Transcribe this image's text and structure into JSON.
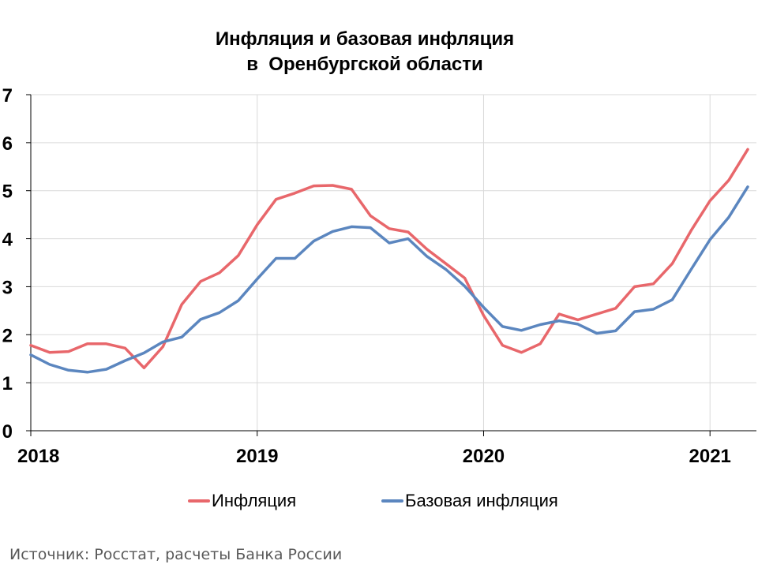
{
  "chart_data": {
    "type": "line",
    "title": "Инфляция и базовая инфляция",
    "subtitle": "в  Оренбургской области",
    "xlabel": "",
    "ylabel": "",
    "ylim": [
      0,
      7
    ],
    "yticks": [
      0,
      1,
      2,
      3,
      4,
      5,
      6,
      7
    ],
    "x_tick_labels": [
      {
        "label": "2018",
        "month_index": 0
      },
      {
        "label": "2019",
        "month_index": 12
      },
      {
        "label": "2020",
        "month_index": 24
      },
      {
        "label": "2021",
        "month_index": 36
      }
    ],
    "x": [
      "2018-01",
      "2018-02",
      "2018-03",
      "2018-04",
      "2018-05",
      "2018-06",
      "2018-07",
      "2018-08",
      "2018-09",
      "2018-10",
      "2018-11",
      "2018-12",
      "2019-01",
      "2019-02",
      "2019-03",
      "2019-04",
      "2019-05",
      "2019-06",
      "2019-07",
      "2019-08",
      "2019-09",
      "2019-10",
      "2019-11",
      "2019-12",
      "2020-01",
      "2020-02",
      "2020-03",
      "2020-04",
      "2020-05",
      "2020-06",
      "2020-07",
      "2020-08",
      "2020-09",
      "2020-10",
      "2020-11",
      "2020-12",
      "2021-01",
      "2021-02",
      "2021-03"
    ],
    "grid": true,
    "legend_position": "bottom",
    "series": [
      {
        "name": "Инфляция",
        "color": "#e8676b",
        "values": [
          1.78,
          1.63,
          1.65,
          1.81,
          1.81,
          1.72,
          1.31,
          1.75,
          2.63,
          3.11,
          3.29,
          3.65,
          4.29,
          4.82,
          4.95,
          5.1,
          5.11,
          5.03,
          4.48,
          4.21,
          4.14,
          3.78,
          3.48,
          3.18,
          2.4,
          1.78,
          1.63,
          1.81,
          2.43,
          2.31,
          2.43,
          2.55,
          3.0,
          3.06,
          3.48,
          4.17,
          4.79,
          5.22,
          5.86
        ]
      },
      {
        "name": "Базовая инфляция",
        "color": "#5b86bf",
        "values": [
          1.58,
          1.38,
          1.26,
          1.22,
          1.28,
          1.46,
          1.62,
          1.85,
          1.95,
          2.32,
          2.46,
          2.71,
          3.16,
          3.59,
          3.59,
          3.95,
          4.15,
          4.25,
          4.23,
          3.91,
          4.0,
          3.63,
          3.36,
          3.01,
          2.57,
          2.17,
          2.09,
          2.21,
          2.29,
          2.22,
          2.03,
          2.08,
          2.48,
          2.53,
          2.73,
          3.36,
          3.98,
          4.45,
          5.08
        ]
      }
    ]
  },
  "source": "Источник: Росстат, расчеты Банка России"
}
